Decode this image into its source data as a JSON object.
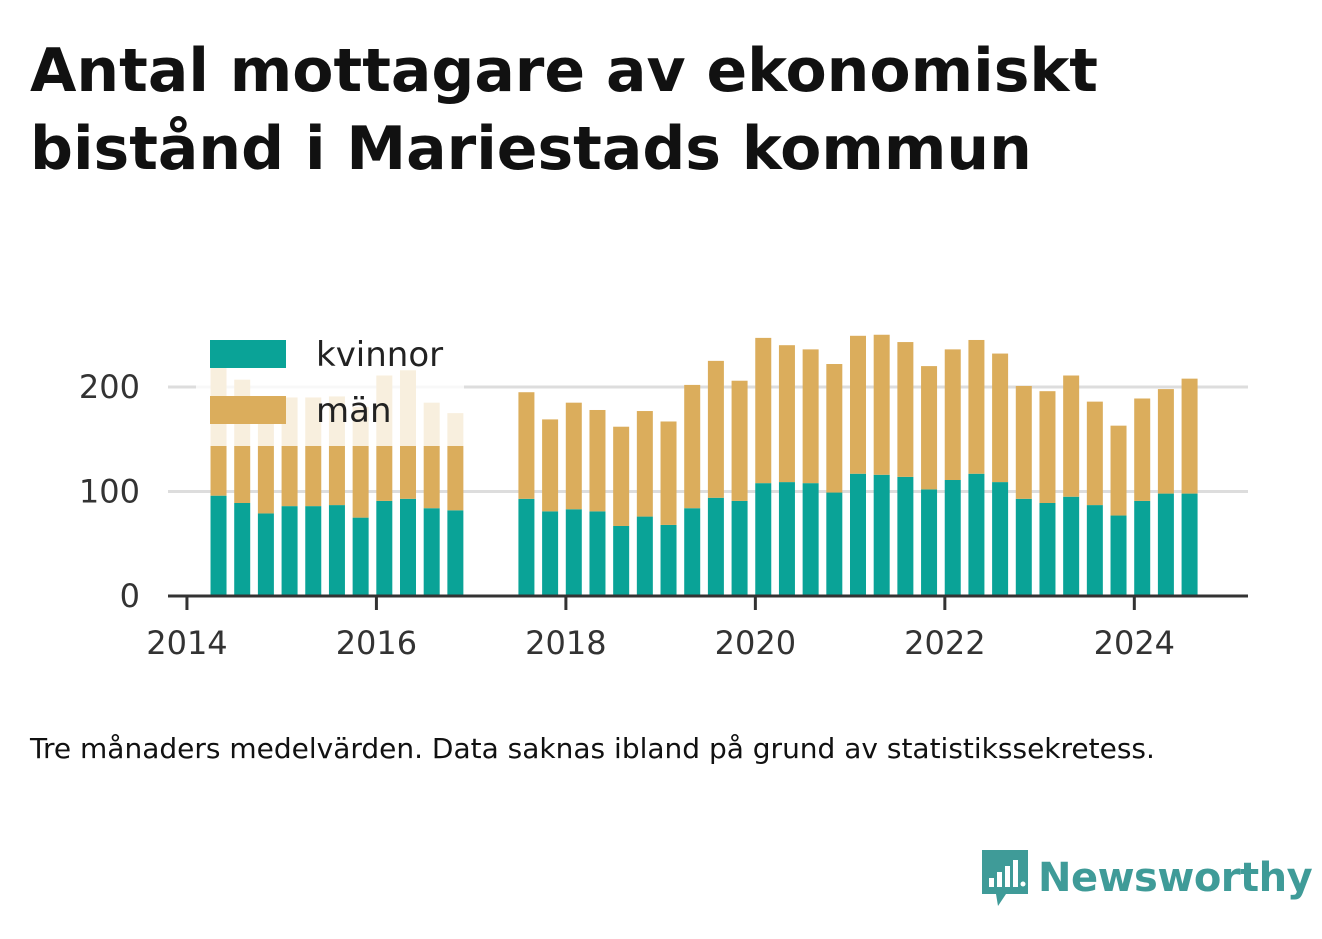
{
  "title": "Antal mottagare av ekonomiskt bistånd i Mariestads kommun",
  "caption": "Tre månaders medelvärden. Data saknas ibland på grund av statistikssekretess.",
  "brand": {
    "name": "Newsworthy",
    "icon": "newsworthy-logo-icon",
    "color": "#3f9b98"
  },
  "colors": {
    "kvinnor": "#0aa397",
    "man": "#dbad5c",
    "grid": "#dddddd",
    "axis": "#333333"
  },
  "chart_data": {
    "type": "bar",
    "stacked": true,
    "title": "Antal mottagare av ekonomiskt bistånd i Mariestads kommun",
    "xlabel": "",
    "ylabel": "",
    "ylim": [
      0,
      270
    ],
    "xlim": [
      2013.8,
      2025.2
    ],
    "yticks": [
      0,
      100,
      200
    ],
    "xticks": [
      "2014",
      "2016",
      "2018",
      "2020",
      "2022",
      "2024"
    ],
    "grid": "horizontal",
    "legend_position": "top-left",
    "x": [
      "2014-05",
      "2014-08",
      "2014-11",
      "2015-02",
      "2015-05",
      "2015-08",
      "2015-11",
      "2016-02",
      "2016-05",
      "2016-08",
      "2016-11",
      "2017-08",
      "2017-11",
      "2018-02",
      "2018-05",
      "2018-08",
      "2018-11",
      "2019-02",
      "2019-05",
      "2019-08",
      "2019-11",
      "2020-02",
      "2020-05",
      "2020-08",
      "2020-11",
      "2021-02",
      "2021-05",
      "2021-08",
      "2021-11",
      "2022-02",
      "2022-05",
      "2022-08",
      "2022-11",
      "2023-02",
      "2023-05",
      "2023-08",
      "2023-11",
      "2024-02",
      "2024-05",
      "2024-08"
    ],
    "series": [
      {
        "name": "kvinnor",
        "color": "#0aa397",
        "values": [
          96,
          89,
          79,
          86,
          86,
          87,
          75,
          91,
          93,
          84,
          82,
          93,
          81,
          83,
          81,
          67,
          76,
          68,
          84,
          94,
          91,
          108,
          109,
          108,
          99,
          117,
          116,
          114,
          102,
          111,
          117,
          109,
          93,
          89,
          95,
          87,
          77,
          91,
          98,
          98
        ]
      },
      {
        "name": "män",
        "color": "#dbad5c",
        "values": [
          124,
          118,
          105,
          104,
          104,
          104,
          106,
          120,
          123,
          101,
          93,
          102,
          88,
          102,
          97,
          95,
          101,
          99,
          118,
          131,
          115,
          139,
          131,
          128,
          123,
          132,
          134,
          129,
          118,
          125,
          128,
          123,
          108,
          107,
          116,
          99,
          86,
          98,
          100,
          110
        ]
      }
    ]
  }
}
